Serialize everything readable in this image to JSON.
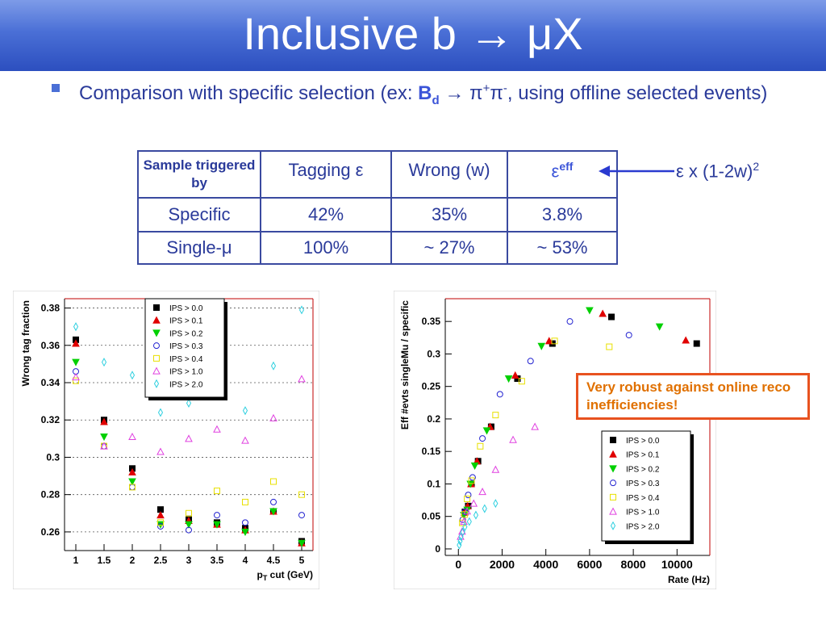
{
  "slide": {
    "title": "Inclusive b → μX",
    "bullet": {
      "prefix": "Comparison with specific selection (ex: ",
      "particle": "B",
      "particle_sub": "d",
      "arrow": " → ",
      "pion1": "π",
      "pion1_sup": "+",
      "pion2": "π",
      "pion2_sup": "-",
      "suffix": ", using offline selected events)"
    },
    "table": {
      "headers": [
        "Sample triggered by",
        "Tagging ε",
        "Wrong (w)",
        "ε"
      ],
      "eff_sup": "eff",
      "rows": [
        [
          "Specific",
          "42%",
          "35%",
          "3.8%"
        ],
        [
          "Single-μ",
          "100%",
          "~ 27%",
          "~ 53%"
        ]
      ]
    },
    "formula": {
      "text": "ε x (1-2w)",
      "sup": "2"
    },
    "note": "Very robust against online reco inefficiencies!",
    "colors": {
      "title_bar": "#4a6fd6",
      "text": "#2a3a9a",
      "note_border": "#e8521f",
      "note_text": "#e07000"
    }
  },
  "chart_data": [
    {
      "type": "scatter",
      "xlabel": "p_T cut (GeV)",
      "ylabel": "Wrong tag fraction",
      "xlim": [
        0.8,
        5.2
      ],
      "ylim": [
        0.25,
        0.385
      ],
      "xticks": [
        "1",
        "1.5",
        "2",
        "2.5",
        "3",
        "3.5",
        "4",
        "4.5",
        "5"
      ],
      "yticks": [
        "0.26",
        "0.28",
        "0.3",
        "0.32",
        "0.34",
        "0.36",
        "0.38"
      ],
      "legend_position": "top-left",
      "grid": true,
      "series": [
        {
          "name": "IPS > 0.0",
          "marker": "square-filled",
          "color": "#000000",
          "x": [
            1,
            1.5,
            2,
            2.5,
            3,
            3.5,
            4,
            4.5,
            5
          ],
          "y": [
            0.363,
            0.32,
            0.294,
            0.272,
            0.267,
            0.265,
            0.262,
            0.271,
            0.255
          ]
        },
        {
          "name": "IPS > 0.1",
          "marker": "triangle-up-filled",
          "color": "#e00000",
          "x": [
            1,
            1.5,
            2,
            2.5,
            3,
            3.5,
            4,
            4.5,
            5
          ],
          "y": [
            0.361,
            0.319,
            0.292,
            0.269,
            0.266,
            0.264,
            0.261,
            0.271,
            0.254
          ]
        },
        {
          "name": "IPS > 0.2",
          "marker": "triangle-down-filled",
          "color": "#00d000",
          "x": [
            1,
            1.5,
            2,
            2.5,
            3,
            3.5,
            4,
            4.5,
            5
          ],
          "y": [
            0.351,
            0.311,
            0.287,
            0.264,
            0.264,
            0.264,
            0.26,
            0.271,
            0.254
          ]
        },
        {
          "name": "IPS > 0.3",
          "marker": "circle-open",
          "color": "#2020d0",
          "x": [
            1,
            1.5,
            2,
            2.5,
            3,
            3.5,
            4,
            4.5,
            5
          ],
          "y": [
            0.346,
            0.306,
            0.284,
            0.263,
            0.261,
            0.269,
            0.265,
            0.276,
            0.269
          ]
        },
        {
          "name": "IPS > 0.4",
          "marker": "square-open",
          "color": "#e8e000",
          "x": [
            1,
            1.5,
            2,
            2.5,
            3,
            3.5,
            4,
            4.5,
            5
          ],
          "y": [
            0.341,
            0.306,
            0.284,
            0.265,
            0.27,
            0.282,
            0.276,
            0.287,
            0.28
          ]
        },
        {
          "name": "IPS > 1.0",
          "marker": "triangle-up-open",
          "color": "#e040e0",
          "x": [
            1,
            1.5,
            2,
            2.5,
            3,
            3.5,
            4,
            4.5,
            5
          ],
          "y": [
            0.343,
            0.306,
            0.311,
            0.303,
            0.31,
            0.315,
            0.309,
            0.321,
            0.342
          ]
        },
        {
          "name": "IPS > 2.0",
          "marker": "diamond-open",
          "color": "#30d0e0",
          "x": [
            1,
            1.5,
            2,
            2.5,
            3,
            3.5,
            4,
            4.5,
            5
          ],
          "y": [
            0.37,
            0.351,
            0.344,
            0.324,
            0.329,
            0.339,
            0.325,
            0.349,
            0.379
          ]
        }
      ]
    },
    {
      "type": "scatter",
      "xlabel": "Rate (Hz)",
      "ylabel": "Eff #evts singleMu / specific",
      "xlim": [
        -600,
        11500
      ],
      "ylim": [
        -0.01,
        0.385
      ],
      "xticks": [
        "0",
        "2000",
        "4000",
        "6000",
        "8000",
        "10000"
      ],
      "yticks": [
        "0",
        "0.05",
        "0.1",
        "0.15",
        "0.2",
        "0.25",
        "0.3",
        "0.35"
      ],
      "legend_position": "bottom-right",
      "grid": false,
      "series": [
        {
          "name": "IPS > 0.0",
          "marker": "square-filled",
          "color": "#000000",
          "x": [
            300,
            450,
            600,
            900,
            1500,
            2700,
            4300,
            7000,
            10900
          ],
          "y": [
            0.057,
            0.066,
            0.1,
            0.135,
            0.188,
            0.262,
            0.316,
            0.357,
            0.316
          ]
        },
        {
          "name": "IPS > 0.1",
          "marker": "triangle-up-filled",
          "color": "#e00000",
          "x": [
            280,
            420,
            580,
            850,
            1450,
            2600,
            4150,
            6600,
            10400
          ],
          "y": [
            0.056,
            0.066,
            0.1,
            0.135,
            0.188,
            0.267,
            0.32,
            0.362,
            0.321
          ]
        },
        {
          "name": "IPS > 0.2",
          "marker": "triangle-down-filled",
          "color": "#00d000",
          "x": [
            250,
            400,
            550,
            750,
            1300,
            2300,
            3800,
            6000,
            9200
          ],
          "y": [
            0.052,
            0.06,
            0.1,
            0.128,
            0.182,
            0.262,
            0.312,
            0.367,
            0.342
          ]
        },
        {
          "name": "IPS > 0.3",
          "marker": "circle-open",
          "color": "#2020d0",
          "x": [
            200,
            300,
            450,
            650,
            1100,
            1900,
            3300,
            5100,
            7800
          ],
          "y": [
            0.045,
            0.057,
            0.083,
            0.11,
            0.17,
            0.238,
            0.289,
            0.35,
            0.329
          ]
        },
        {
          "name": "IPS > 0.4",
          "marker": "square-open",
          "color": "#e8e000",
          "x": [
            180,
            280,
            400,
            600,
            1000,
            1700,
            2900,
            4400,
            6900
          ],
          "y": [
            0.04,
            0.053,
            0.077,
            0.105,
            0.158,
            0.206,
            0.258,
            0.32,
            0.311
          ]
        },
        {
          "name": "IPS > 1.0",
          "marker": "triangle-up-open",
          "color": "#e040e0",
          "x": [
            100,
            170,
            250,
            400,
            700,
            1100,
            1700,
            2500,
            3500
          ],
          "y": [
            0.019,
            0.027,
            0.042,
            0.058,
            0.07,
            0.088,
            0.122,
            0.168,
            0.188
          ]
        },
        {
          "name": "IPS > 2.0",
          "marker": "diamond-open",
          "color": "#30d0e0",
          "x": [
            40,
            80,
            120,
            200,
            300,
            500,
            800,
            1200,
            1700
          ],
          "y": [
            0.006,
            0.012,
            0.019,
            0.026,
            0.034,
            0.042,
            0.052,
            0.062,
            0.07
          ]
        }
      ]
    }
  ]
}
